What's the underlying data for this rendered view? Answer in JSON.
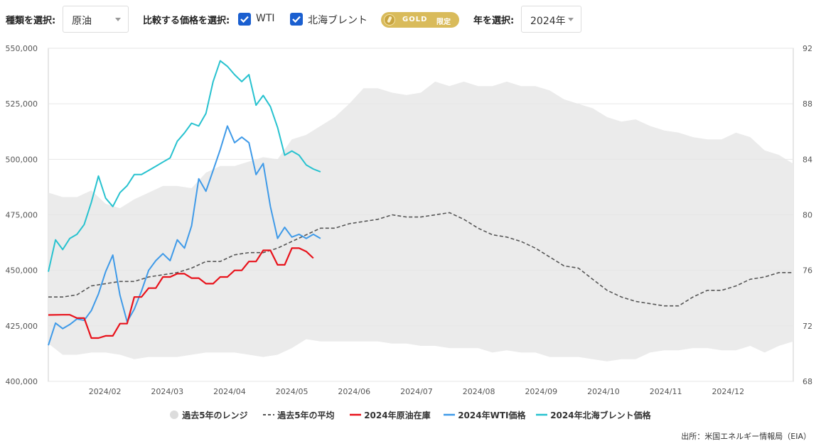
{
  "controls": {
    "type_label": "種類を選択:",
    "type_value": "原油",
    "compare_label": "比較する価格を選択:",
    "wti_label": "WTI",
    "brent_label": "北海ブレント",
    "gold_badge": "GOLD",
    "gold_badge_suffix": "限定",
    "year_label": "年を選択:",
    "year_value": "2024年"
  },
  "colors": {
    "range": "#ebebeb",
    "avg": "#555555",
    "inventory": "#e8121b",
    "wti": "#3f9ae8",
    "brent": "#27c2cf",
    "checkbox": "#1a5fd0",
    "gold": "#d9bb5b"
  },
  "source": "出所：米国エネルギー情報局（EIA）",
  "chart_data": {
    "type": "line",
    "x_axis": {
      "ticks": [
        "2024/02",
        "2024/03",
        "2024/04",
        "2024/05",
        "2024/06",
        "2024/07",
        "2024/08",
        "2024/09",
        "2024/10",
        "2024/11",
        "2024/12"
      ],
      "range_weeks": [
        0,
        52
      ]
    },
    "y_left": {
      "ticks": [
        "400,000",
        "425,000",
        "450,000",
        "475,000",
        "500,000",
        "525,000",
        "550,000"
      ],
      "range": [
        400000,
        550000
      ]
    },
    "y_right": {
      "ticks": [
        "68",
        "72",
        "76",
        "80",
        "84",
        "88",
        "92"
      ],
      "range": [
        68,
        92
      ]
    },
    "grid": "horizontal",
    "legend": {
      "placement": "bottom",
      "items": [
        "過去5年のレンジ",
        "過去5年の平均",
        "2024年原油在庫",
        "2024年WTI価格",
        "2024年北海ブレント価格"
      ]
    },
    "range_band": {
      "name": "過去5年のレンジ",
      "weeks": [
        0,
        1,
        2,
        3,
        4,
        5,
        6,
        7,
        8,
        9,
        10,
        11,
        12,
        13,
        14,
        15,
        16,
        17,
        18,
        19,
        20,
        21,
        22,
        23,
        24,
        25,
        26,
        27,
        28,
        29,
        30,
        31,
        32,
        33,
        34,
        35,
        36,
        37,
        38,
        39,
        40,
        41,
        42,
        43,
        44,
        45,
        46,
        47,
        48,
        49,
        50,
        51,
        52
      ],
      "upper": [
        485,
        483,
        483,
        486,
        480,
        478,
        482,
        485,
        488,
        488,
        487,
        494,
        497,
        497,
        499,
        501,
        500,
        509,
        511,
        515,
        519,
        525,
        532,
        532,
        530,
        529,
        530,
        535,
        533,
        535,
        533,
        533,
        535,
        533,
        533,
        531,
        527,
        525,
        523,
        519,
        517,
        518,
        515,
        513,
        512,
        510,
        509,
        509,
        512,
        510,
        504,
        502,
        498
      ],
      "lower": [
        417,
        412,
        412,
        413,
        413,
        412,
        410,
        411,
        411,
        411,
        412,
        413,
        413,
        413,
        412,
        411,
        412,
        415,
        419,
        418,
        418,
        418,
        418,
        418,
        417,
        417,
        416,
        416,
        415,
        415,
        415,
        413,
        414,
        413,
        413,
        411,
        411,
        411,
        410,
        409,
        410,
        410,
        413,
        414,
        414,
        415,
        415,
        414,
        414,
        416,
        413,
        416,
        418
      ]
    },
    "series": [
      {
        "name": "過去5年の平均",
        "x": [
          0,
          1,
          2,
          3,
          4,
          5,
          6,
          7,
          8,
          9,
          10,
          11,
          12,
          13,
          14,
          15,
          16,
          17,
          18,
          19,
          20,
          21,
          22,
          23,
          24,
          25,
          26,
          27,
          28,
          29,
          30,
          31,
          32,
          33,
          34,
          35,
          36,
          37,
          38,
          39,
          40,
          41,
          42,
          43,
          44,
          45,
          46,
          47,
          48,
          49,
          50,
          51,
          52
        ],
        "values": [
          438,
          438,
          439,
          443,
          444,
          445,
          445,
          447,
          448,
          449,
          451,
          454,
          454,
          457,
          458,
          458,
          460,
          463,
          466,
          469,
          469,
          471,
          472,
          473,
          475,
          474,
          474,
          475,
          476,
          473,
          469,
          466,
          465,
          463,
          460,
          456,
          452,
          451,
          446,
          441,
          438,
          436,
          435,
          434,
          434,
          438,
          441,
          441,
          443,
          446,
          447,
          449,
          449
        ]
      },
      {
        "name": "2024年原油在庫",
        "x": [
          0,
          1,
          1.5,
          2,
          2.5,
          3,
          3.5,
          4,
          4.5,
          5,
          5.5,
          6,
          6.5,
          7,
          7.5,
          8,
          8.5,
          9,
          9.5,
          10,
          10.5,
          11,
          11.5,
          12,
          12.5,
          13,
          13.5,
          14,
          14.5,
          15,
          15.5,
          16,
          16.5,
          17,
          17.5,
          18,
          18.5
        ],
        "values": [
          429.9,
          430,
          430,
          428.5,
          428.5,
          419.5,
          419.5,
          420.5,
          420.5,
          426,
          426,
          438,
          438,
          442,
          442,
          447,
          447,
          448.5,
          448.5,
          446.5,
          446.5,
          444,
          444,
          447,
          447,
          450,
          450,
          454,
          454,
          459,
          459,
          452.5,
          452.5,
          460,
          460,
          458.5,
          455.5
        ]
      },
      {
        "name": "2024年WTI価格",
        "axis": "right",
        "x": [
          0,
          0.5,
          1,
          1.5,
          2,
          2.5,
          3,
          3.5,
          4,
          4.5,
          5,
          5.5,
          6,
          6.5,
          7,
          7.5,
          8,
          8.5,
          9,
          9.5,
          10,
          10.5,
          11,
          11.5,
          12,
          12.5,
          13,
          13.5,
          14,
          14.5,
          15,
          15.5,
          16,
          16.5,
          17,
          17.5,
          18,
          18.5,
          19
        ],
        "values": [
          70.6,
          72.2,
          71.8,
          72.1,
          72.5,
          72.4,
          73.1,
          74.3,
          75.9,
          77.1,
          74.2,
          72.3,
          73.2,
          74.5,
          76,
          76.7,
          77.2,
          76.7,
          78.2,
          77.6,
          79.2,
          82.6,
          81.7,
          83.2,
          84.7,
          86.4,
          85.2,
          85.6,
          85.2,
          82.9,
          83.7,
          80.6,
          78.3,
          79.1,
          78.4,
          78.6,
          78.3,
          78.6,
          78.3
        ]
      },
      {
        "name": "2024年北海ブレント価格",
        "axis": "right",
        "x": [
          0,
          0.5,
          1,
          1.5,
          2,
          2.5,
          3,
          3.5,
          4,
          4.5,
          5,
          5.5,
          6,
          6.5,
          7,
          7.5,
          8,
          8.5,
          9,
          9.5,
          10,
          10.5,
          11,
          11.5,
          12,
          12.5,
          13,
          13.5,
          14,
          14.5,
          15,
          15.5,
          16,
          16.5,
          17,
          17.5,
          18,
          18.5,
          19
        ],
        "values": [
          75.9,
          78.2,
          77.5,
          78.3,
          78.6,
          79.3,
          80.9,
          82.8,
          81.2,
          80.6,
          81.6,
          82.1,
          82.9,
          82.9,
          83.2,
          83.5,
          83.8,
          84.1,
          85.3,
          85.9,
          86.6,
          86.4,
          87.3,
          89.6,
          91.1,
          90.7,
          90.1,
          89.6,
          90.1,
          87.9,
          88.6,
          87.8,
          86.3,
          84.3,
          84.6,
          84.3,
          83.6,
          83.3,
          83.1
        ]
      }
    ]
  }
}
